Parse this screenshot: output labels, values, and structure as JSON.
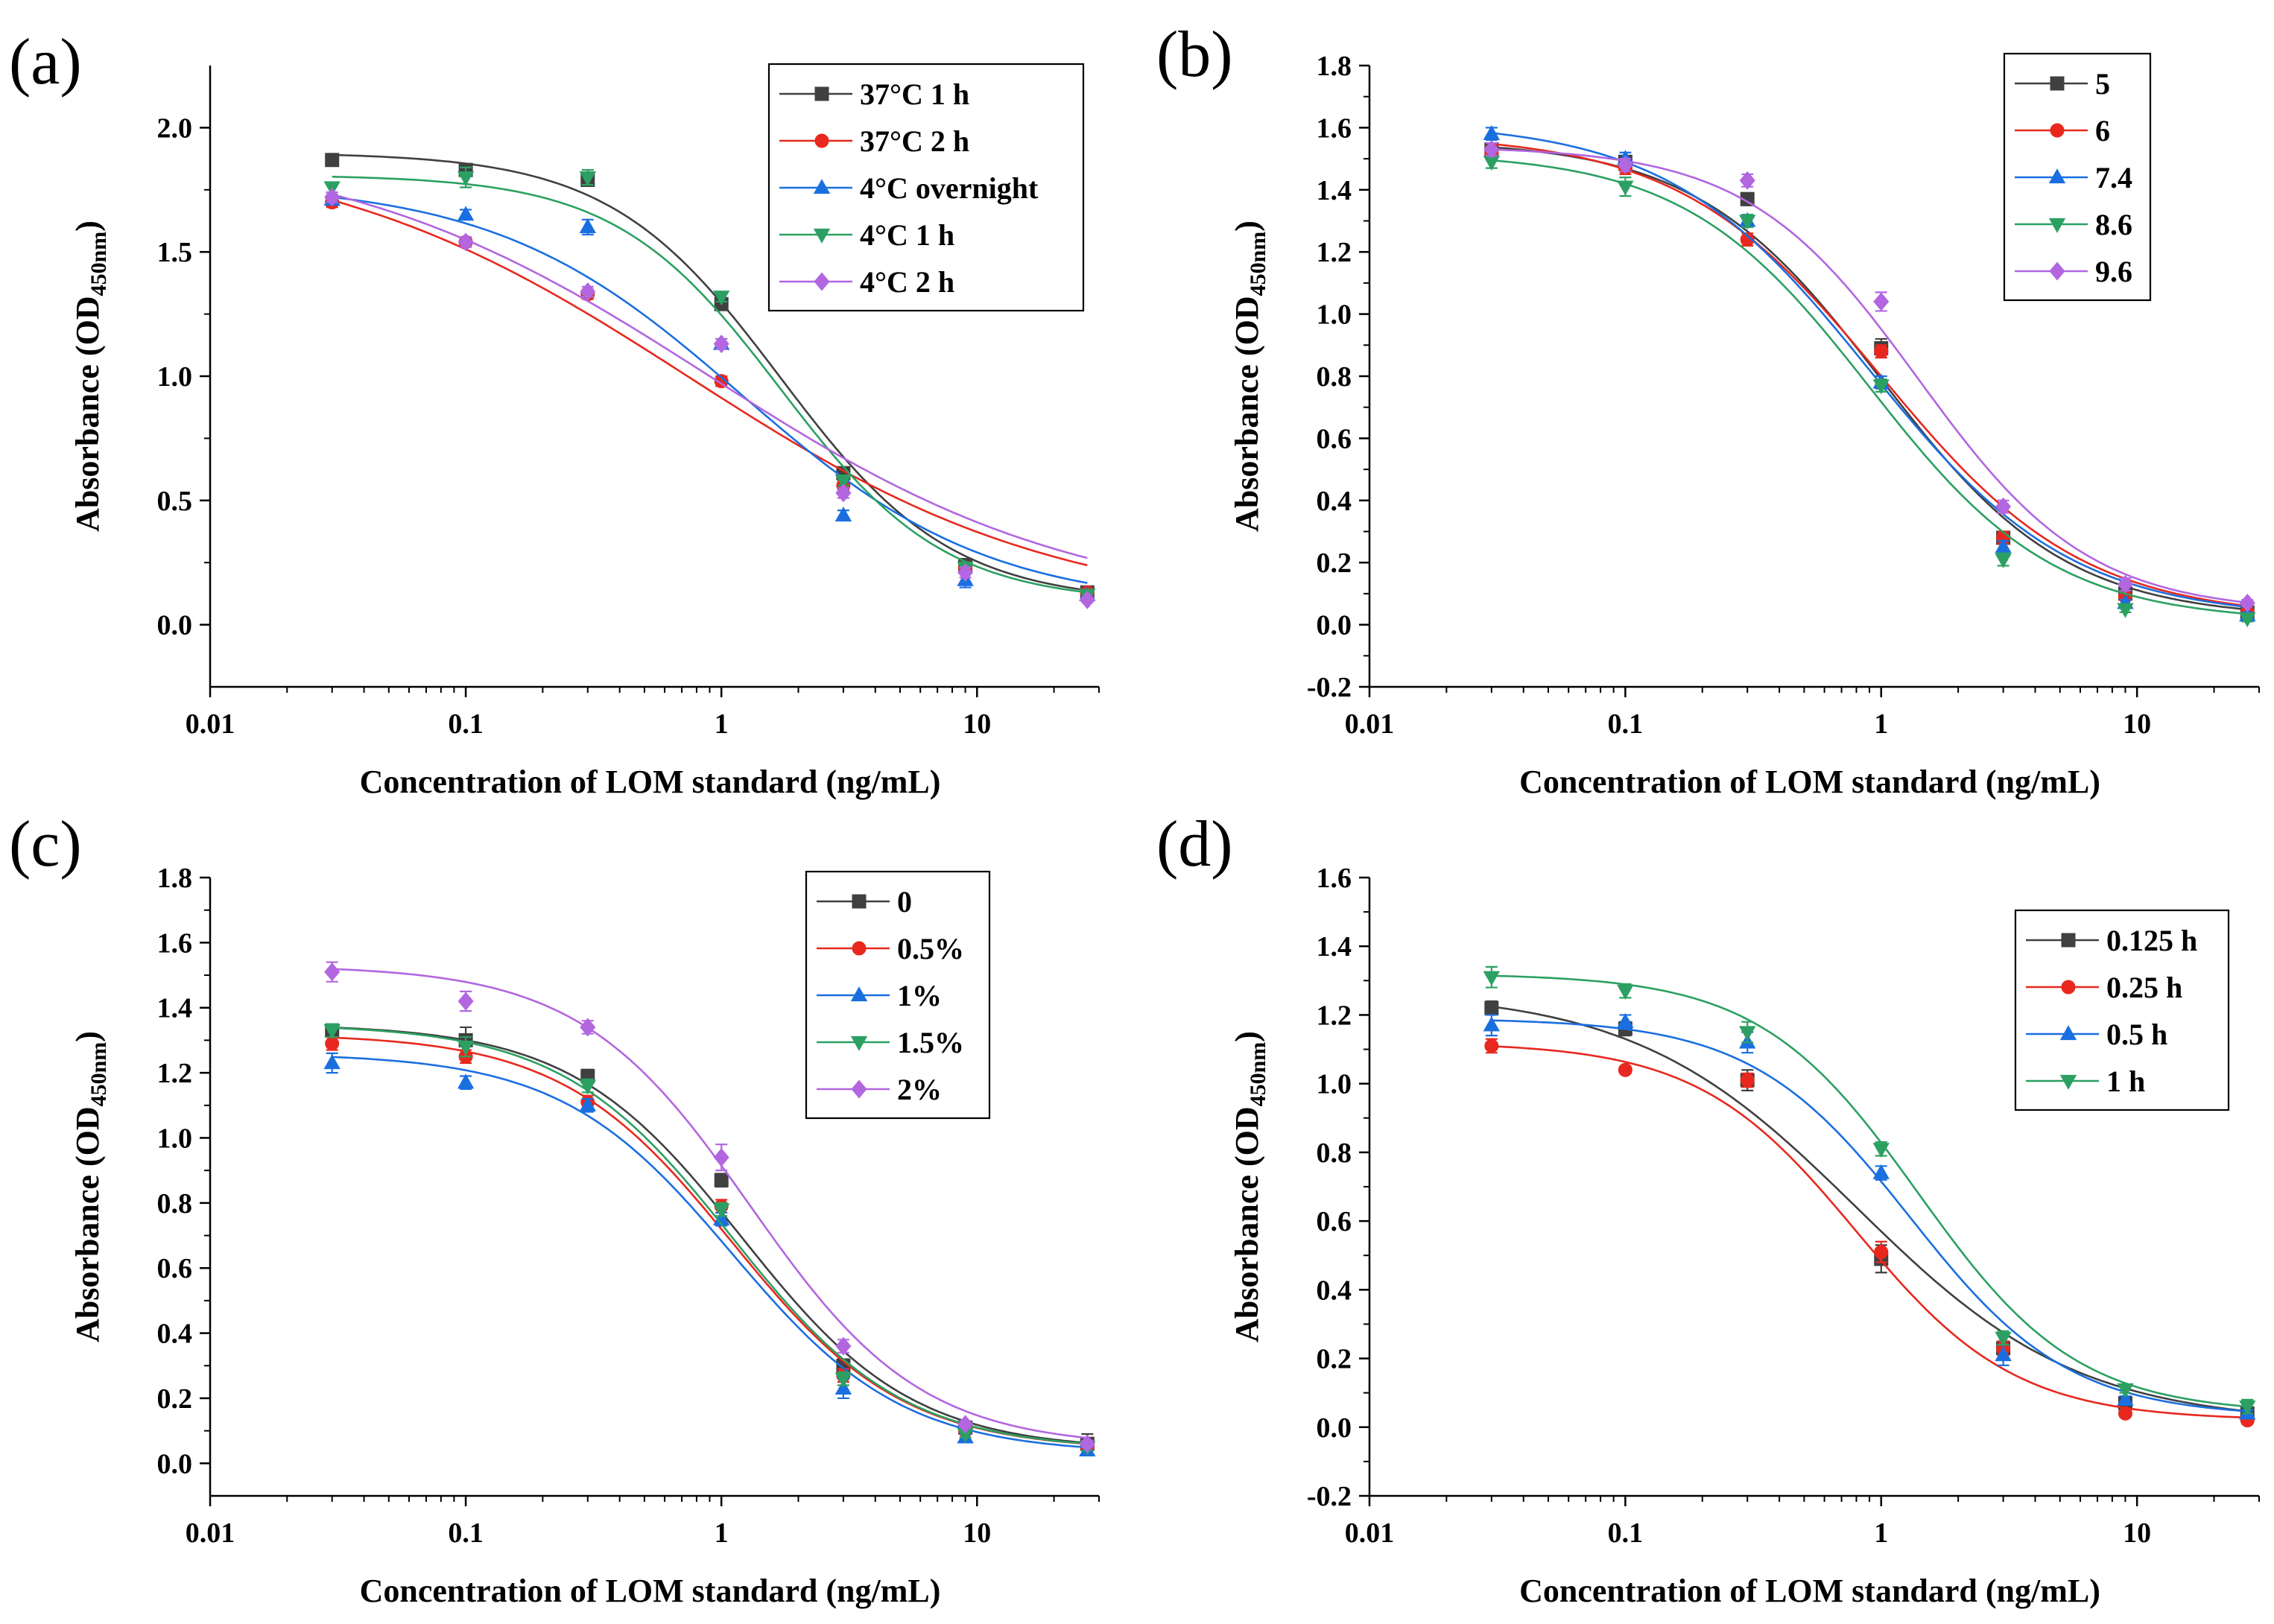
{
  "figure": {
    "colors": {
      "black": "#404040",
      "red": "#e8281e",
      "blue": "#1a6fe0",
      "green": "#2ca062",
      "purple": "#b266e0"
    }
  },
  "chart_data": [
    {
      "panel": "(a)",
      "type": "line",
      "xscale": "log",
      "xlim": [
        0.01,
        30
      ],
      "xticks": [
        0.01,
        0.1,
        1,
        10
      ],
      "xtick_labels": [
        "0.01",
        "0.1",
        "1",
        "10"
      ],
      "ylim": [
        -0.25,
        2.25
      ],
      "yticks": [
        0.0,
        0.5,
        1.0,
        1.5,
        2.0
      ],
      "ytick_labels": [
        "0.0",
        "0.5",
        "1.0",
        "1.5",
        "2.0"
      ],
      "xlabel": "Concentration of LOM standard (ng/mL)",
      "ylabel_main": "Absorbance (OD",
      "ylabel_sub": "450nm",
      "ylabel_end": ")",
      "legend_position": "top-right",
      "x": [
        0.03,
        0.1,
        0.3,
        1,
        3,
        9,
        27
      ],
      "series": [
        {
          "name": "37°C 1 h",
          "color": "black",
          "marker": "square",
          "values": [
            1.87,
            1.83,
            1.79,
            1.29,
            0.61,
            0.24,
            0.13
          ],
          "errors": [
            0.02,
            0.02,
            0.02,
            0.02,
            0.02,
            0.02,
            0.01
          ],
          "fit": {
            "bottom": 0.09,
            "top": 1.9,
            "ec50": 1.7,
            "hill": 1.3
          }
        },
        {
          "name": "37°C 2 h",
          "color": "red",
          "marker": "circle",
          "values": [
            1.7,
            1.54,
            1.33,
            0.98,
            0.56,
            0.23,
            0.13
          ],
          "errors": [
            0.02,
            0.02,
            0.02,
            0.02,
            0.02,
            0.02,
            0.01
          ],
          "fit": {
            "bottom": 0.04,
            "top": 1.95,
            "ec50": 0.75,
            "hill": 0.6
          }
        },
        {
          "name": "4°C overnight",
          "color": "blue",
          "marker": "triangle-up",
          "values": [
            1.71,
            1.65,
            1.6,
            1.13,
            0.44,
            0.18,
            0.12
          ],
          "errors": [
            0.02,
            0.02,
            0.03,
            0.02,
            0.02,
            0.03,
            0.01
          ],
          "fit": {
            "bottom": 0.07,
            "top": 1.78,
            "ec50": 1.2,
            "hill": 0.9
          }
        },
        {
          "name": "4°C 1 h",
          "color": "green",
          "marker": "triangle-down",
          "values": [
            1.76,
            1.8,
            1.8,
            1.32,
            0.58,
            0.23,
            0.12
          ],
          "errors": [
            0.02,
            0.04,
            0.03,
            0.02,
            0.02,
            0.02,
            0.01
          ],
          "fit": {
            "bottom": 0.09,
            "top": 1.81,
            "ec50": 1.7,
            "hill": 1.35
          }
        },
        {
          "name": "4°C 2 h",
          "color": "purple",
          "marker": "diamond",
          "values": [
            1.72,
            1.54,
            1.34,
            1.13,
            0.53,
            0.21,
            0.1
          ],
          "errors": [
            0.02,
            0.02,
            0.02,
            0.02,
            0.02,
            0.02,
            0.01
          ],
          "fit": {
            "bottom": 0.05,
            "top": 1.95,
            "ec50": 0.9,
            "hill": 0.6
          }
        }
      ]
    },
    {
      "panel": "(b)",
      "type": "line",
      "xscale": "log",
      "xlim": [
        0.01,
        30
      ],
      "xticks": [
        0.01,
        0.1,
        1,
        10
      ],
      "xtick_labels": [
        "0.01",
        "0.1",
        "1",
        "10"
      ],
      "ylim": [
        -0.2,
        1.8
      ],
      "yticks": [
        -0.2,
        0.0,
        0.2,
        0.4,
        0.6,
        0.8,
        1.0,
        1.2,
        1.4,
        1.6,
        1.8
      ],
      "ytick_labels": [
        "-0.2",
        "0.0",
        "0.2",
        "0.4",
        "0.6",
        "0.8",
        "1.0",
        "1.2",
        "1.4",
        "1.6",
        "1.8"
      ],
      "xlabel": "Concentration of LOM standard (ng/mL)",
      "ylabel_main": "Absorbance (OD",
      "ylabel_sub": "450nm",
      "ylabel_end": ")",
      "legend_position": "top-right",
      "x": [
        0.03,
        0.1,
        0.3,
        1,
        3,
        9,
        27
      ],
      "series": [
        {
          "name": "5",
          "color": "black",
          "marker": "square",
          "values": [
            1.53,
            1.49,
            1.37,
            0.89,
            0.28,
            0.1,
            0.04
          ],
          "errors": [
            0.02,
            0.02,
            0.02,
            0.03,
            0.02,
            0.01,
            0.01
          ],
          "fit": {
            "bottom": 0.02,
            "top": 1.56,
            "ec50": 1.0,
            "hill": 1.2
          }
        },
        {
          "name": "6",
          "color": "red",
          "marker": "circle",
          "values": [
            1.52,
            1.47,
            1.24,
            0.88,
            0.28,
            0.09,
            0.04
          ],
          "errors": [
            0.02,
            0.02,
            0.02,
            0.02,
            0.02,
            0.01,
            0.01
          ],
          "fit": {
            "bottom": 0.02,
            "top": 1.58,
            "ec50": 1.0,
            "hill": 1.1
          }
        },
        {
          "name": "7.4",
          "color": "blue",
          "marker": "triangle-up",
          "values": [
            1.58,
            1.5,
            1.3,
            0.78,
            0.25,
            0.07,
            0.03
          ],
          "errors": [
            0.02,
            0.02,
            0.02,
            0.02,
            0.02,
            0.01,
            0.01
          ],
          "fit": {
            "bottom": 0.02,
            "top": 1.62,
            "ec50": 0.9,
            "hill": 1.1
          }
        },
        {
          "name": "8.6",
          "color": "green",
          "marker": "triangle-down",
          "values": [
            1.49,
            1.41,
            1.3,
            0.77,
            0.21,
            0.05,
            0.02
          ],
          "errors": [
            0.02,
            0.03,
            0.02,
            0.02,
            0.02,
            0.01,
            0.01
          ],
          "fit": {
            "bottom": 0.01,
            "top": 1.52,
            "ec50": 0.9,
            "hill": 1.2
          }
        },
        {
          "name": "9.6",
          "color": "purple",
          "marker": "diamond",
          "values": [
            1.53,
            1.48,
            1.43,
            1.04,
            0.38,
            0.13,
            0.07
          ],
          "errors": [
            0.02,
            0.02,
            0.02,
            0.03,
            0.02,
            0.02,
            0.01
          ],
          "fit": {
            "bottom": 0.04,
            "top": 1.54,
            "ec50": 1.4,
            "hill": 1.3
          }
        }
      ]
    },
    {
      "panel": "(c)",
      "type": "line",
      "xscale": "log",
      "xlim": [
        0.01,
        30
      ],
      "xticks": [
        0.01,
        0.1,
        1,
        10
      ],
      "xtick_labels": [
        "0.01",
        "0.1",
        "1",
        "10"
      ],
      "ylim": [
        -0.1,
        1.8
      ],
      "yticks": [
        0.0,
        0.2,
        0.4,
        0.6,
        0.8,
        1.0,
        1.2,
        1.4,
        1.6,
        1.8
      ],
      "ytick_labels": [
        "0.0",
        "0.2",
        "0.4",
        "0.6",
        "0.8",
        "1.0",
        "1.2",
        "1.4",
        "1.6",
        "1.8"
      ],
      "xlabel": "Concentration of LOM standard (ng/mL)",
      "ylabel_main": "Absorbance (OD",
      "ylabel_sub": "450nm",
      "ylabel_end": ")",
      "legend_position": "top-right",
      "x": [
        0.03,
        0.1,
        0.3,
        1,
        3,
        9,
        27
      ],
      "series": [
        {
          "name": "0",
          "color": "black",
          "marker": "square",
          "values": [
            1.33,
            1.3,
            1.19,
            0.87,
            0.3,
            0.11,
            0.06
          ],
          "errors": [
            0.02,
            0.04,
            0.02,
            0.02,
            0.02,
            0.01,
            0.03
          ],
          "fit": {
            "bottom": 0.04,
            "top": 1.35,
            "ec50": 1.2,
            "hill": 1.3
          }
        },
        {
          "name": "0.5%",
          "color": "red",
          "marker": "circle",
          "values": [
            1.29,
            1.25,
            1.11,
            0.79,
            0.27,
            0.1,
            0.05
          ],
          "errors": [
            0.02,
            0.02,
            0.02,
            0.02,
            0.02,
            0.01,
            0.01
          ],
          "fit": {
            "bottom": 0.04,
            "top": 1.32,
            "ec50": 1.1,
            "hill": 1.3
          }
        },
        {
          "name": "1%",
          "color": "blue",
          "marker": "triangle-up",
          "values": [
            1.23,
            1.17,
            1.1,
            0.75,
            0.23,
            0.08,
            0.04
          ],
          "errors": [
            0.03,
            0.02,
            0.02,
            0.02,
            0.03,
            0.01,
            0.01
          ],
          "fit": {
            "bottom": 0.03,
            "top": 1.26,
            "ec50": 1.1,
            "hill": 1.3
          }
        },
        {
          "name": "1.5%",
          "color": "green",
          "marker": "triangle-down",
          "values": [
            1.33,
            1.28,
            1.16,
            0.78,
            0.26,
            0.09,
            0.05
          ],
          "errors": [
            0.02,
            0.03,
            0.02,
            0.02,
            0.02,
            0.01,
            0.01
          ],
          "fit": {
            "bottom": 0.04,
            "top": 1.35,
            "ec50": 1.1,
            "hill": 1.3
          }
        },
        {
          "name": "2%",
          "color": "purple",
          "marker": "diamond",
          "values": [
            1.51,
            1.42,
            1.34,
            0.94,
            0.36,
            0.12,
            0.06
          ],
          "errors": [
            0.03,
            0.03,
            0.02,
            0.04,
            0.02,
            0.01,
            0.01
          ],
          "fit": {
            "bottom": 0.05,
            "top": 1.53,
            "ec50": 1.3,
            "hill": 1.3
          }
        }
      ]
    },
    {
      "panel": "(d)",
      "type": "line",
      "xscale": "log",
      "xlim": [
        0.01,
        30
      ],
      "xticks": [
        0.01,
        0.1,
        1,
        10
      ],
      "xtick_labels": [
        "0.01",
        "0.1",
        "1",
        "10"
      ],
      "ylim": [
        -0.2,
        1.6
      ],
      "yticks": [
        -0.2,
        0.0,
        0.2,
        0.4,
        0.6,
        0.8,
        1.0,
        1.2,
        1.4,
        1.6
      ],
      "ytick_labels": [
        "-0.2",
        "0.0",
        "0.2",
        "0.4",
        "0.6",
        "0.8",
        "1.0",
        "1.2",
        "1.4",
        "1.6"
      ],
      "xlabel": "Concentration of LOM standard (ng/mL)",
      "ylabel_main": "Absorbance (OD",
      "ylabel_sub": "450nm",
      "ylabel_end": ")",
      "legend_position": "top-right",
      "x": [
        0.03,
        0.1,
        0.3,
        1,
        3,
        9,
        27
      ],
      "series": [
        {
          "name": "0.125 h",
          "color": "black",
          "marker": "square",
          "values": [
            1.22,
            1.16,
            1.01,
            0.49,
            0.23,
            0.07,
            0.04
          ],
          "errors": [
            0.02,
            0.02,
            0.03,
            0.04,
            0.02,
            0.01,
            0.01
          ],
          "fit": {
            "bottom": 0.01,
            "top": 1.27,
            "ec50": 0.8,
            "hill": 1.0
          }
        },
        {
          "name": "0.25 h",
          "color": "red",
          "marker": "circle",
          "values": [
            1.11,
            1.04,
            1.01,
            0.51,
            0.23,
            0.04,
            0.02
          ],
          "errors": [
            0.02,
            0.01,
            0.02,
            0.03,
            0.02,
            0.01,
            0.01
          ],
          "fit": {
            "bottom": 0.02,
            "top": 1.12,
            "ec50": 0.8,
            "hill": 1.4
          }
        },
        {
          "name": "0.5 h",
          "color": "blue",
          "marker": "triangle-up",
          "values": [
            1.17,
            1.18,
            1.12,
            0.74,
            0.21,
            0.08,
            0.04
          ],
          "errors": [
            0.03,
            0.02,
            0.03,
            0.02,
            0.03,
            0.01,
            0.01
          ],
          "fit": {
            "bottom": 0.03,
            "top": 1.19,
            "ec50": 1.3,
            "hill": 1.4
          }
        },
        {
          "name": "1 h",
          "color": "green",
          "marker": "triangle-down",
          "values": [
            1.31,
            1.27,
            1.15,
            0.81,
            0.26,
            0.11,
            0.06
          ],
          "errors": [
            0.03,
            0.02,
            0.03,
            0.02,
            0.02,
            0.01,
            0.02
          ],
          "fit": {
            "bottom": 0.04,
            "top": 1.32,
            "ec50": 1.4,
            "hill": 1.4
          }
        }
      ]
    }
  ]
}
